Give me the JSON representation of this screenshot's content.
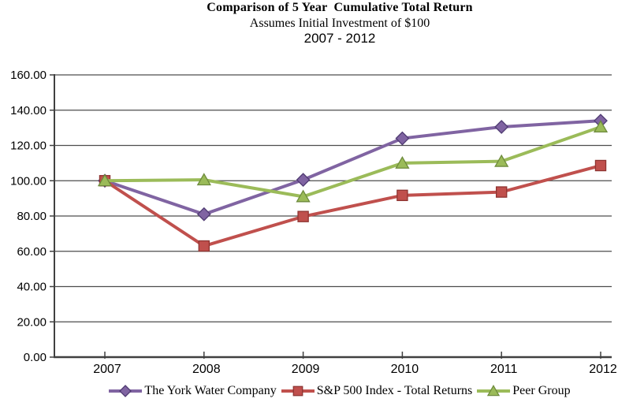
{
  "title": {
    "line1": "Comparison of 5 Year  Cumulative Total Return",
    "line2": "Assumes Initial Investment of $100",
    "line3": "2007 - 2012"
  },
  "chart_data": {
    "type": "line",
    "x": [
      "2007",
      "2008",
      "2009",
      "2010",
      "2011",
      "2012"
    ],
    "series": [
      {
        "name": "The York Water Company",
        "marker": "diamond",
        "color": "#8064A2",
        "marker_border": "#4F3B72",
        "values": [
          100.0,
          81.0,
          100.5,
          124.0,
          130.5,
          134.0
        ]
      },
      {
        "name": "S&P 500 Index - Total Returns",
        "marker": "square",
        "color": "#C0504D",
        "marker_border": "#8E3431",
        "values": [
          100.0,
          63.0,
          79.7,
          91.7,
          93.6,
          108.6
        ]
      },
      {
        "name": "Peer Group",
        "marker": "triangle",
        "color": "#9BBB59",
        "marker_border": "#6E8B3D",
        "values": [
          100.0,
          100.5,
          91.0,
          110.0,
          111.0,
          130.5
        ]
      }
    ],
    "ylim": [
      0,
      160
    ],
    "ytick_step": 20,
    "ytick_labels": [
      "0.00",
      "20.00",
      "40.00",
      "60.00",
      "80.00",
      "100.00",
      "120.00",
      "140.00",
      "160.00"
    ],
    "grid": "horizontal",
    "legend_position": "bottom"
  },
  "colors": {
    "axis": "#404040",
    "gridline": "#4D4D4D",
    "text": "#000000",
    "background": "#FFFFFF"
  }
}
